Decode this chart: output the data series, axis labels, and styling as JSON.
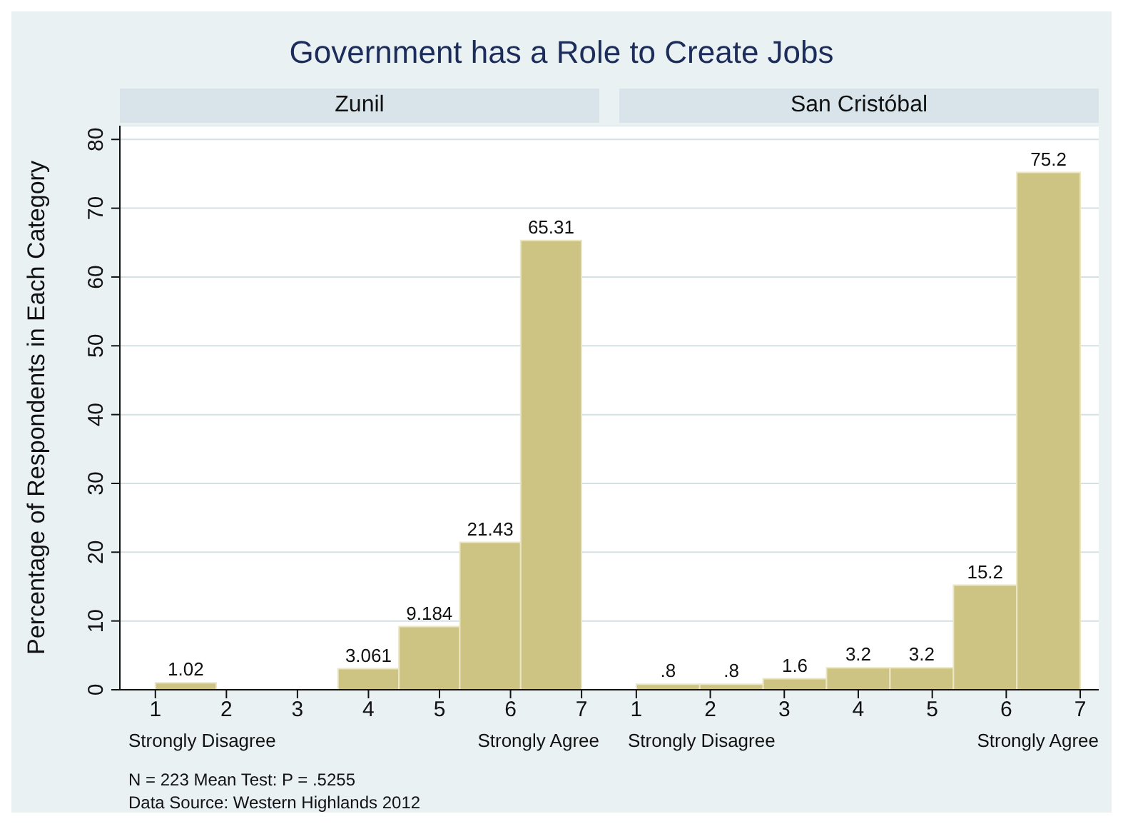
{
  "chart_data": [
    {
      "type": "histogram",
      "title": "Government has a Role to Create Jobs",
      "subtitle": "Zunil",
      "ylabel": "Percentage of Respondents in Each Category",
      "color": "#cdc383",
      "bins": [
        1,
        1.857,
        2.714,
        3.571,
        4.429,
        5.286,
        6.143,
        7
      ],
      "values": [
        1.02,
        0,
        0,
        3.061,
        9.184,
        21.43,
        65.31
      ],
      "value_labels": [
        "1.02",
        null,
        null,
        "3.061",
        "9.184",
        "21.43",
        "65.31"
      ],
      "xlim": [
        0.5,
        7.25
      ],
      "xticks": [
        1,
        2,
        3,
        4,
        5,
        6,
        7
      ],
      "ylim": [
        0,
        82
      ],
      "yticks": [
        0,
        10,
        20,
        30,
        40,
        50,
        60,
        70,
        80
      ],
      "grid": "y",
      "annotations": [
        "Strongly Disagree",
        "Strongly Agree",
        "N = 223 Mean Test: P = .5255",
        "Data Source: Western Highlands 2012"
      ]
    },
    {
      "type": "histogram",
      "subtitle": "San Cristóbal",
      "color": "#cdc383",
      "bins": [
        1,
        1.857,
        2.714,
        3.571,
        4.429,
        5.286,
        6.143,
        7
      ],
      "values": [
        0.8,
        0.8,
        1.6,
        3.2,
        3.2,
        15.2,
        75.2
      ],
      "value_labels": [
        ".8",
        ".8",
        "1.6",
        "3.2",
        "3.2",
        "15.2",
        "75.2"
      ],
      "xlim": [
        0.5,
        7.25
      ],
      "xticks": [
        1,
        2,
        3,
        4,
        5,
        6,
        7
      ],
      "ylim": [
        0,
        82
      ],
      "yticks": [
        0,
        10,
        20,
        30,
        40,
        50,
        60,
        70,
        80
      ],
      "grid": "y",
      "tick_labels": "x",
      "annotations": [
        "Strongly Disagree",
        "Strongly Agree"
      ]
    }
  ]
}
